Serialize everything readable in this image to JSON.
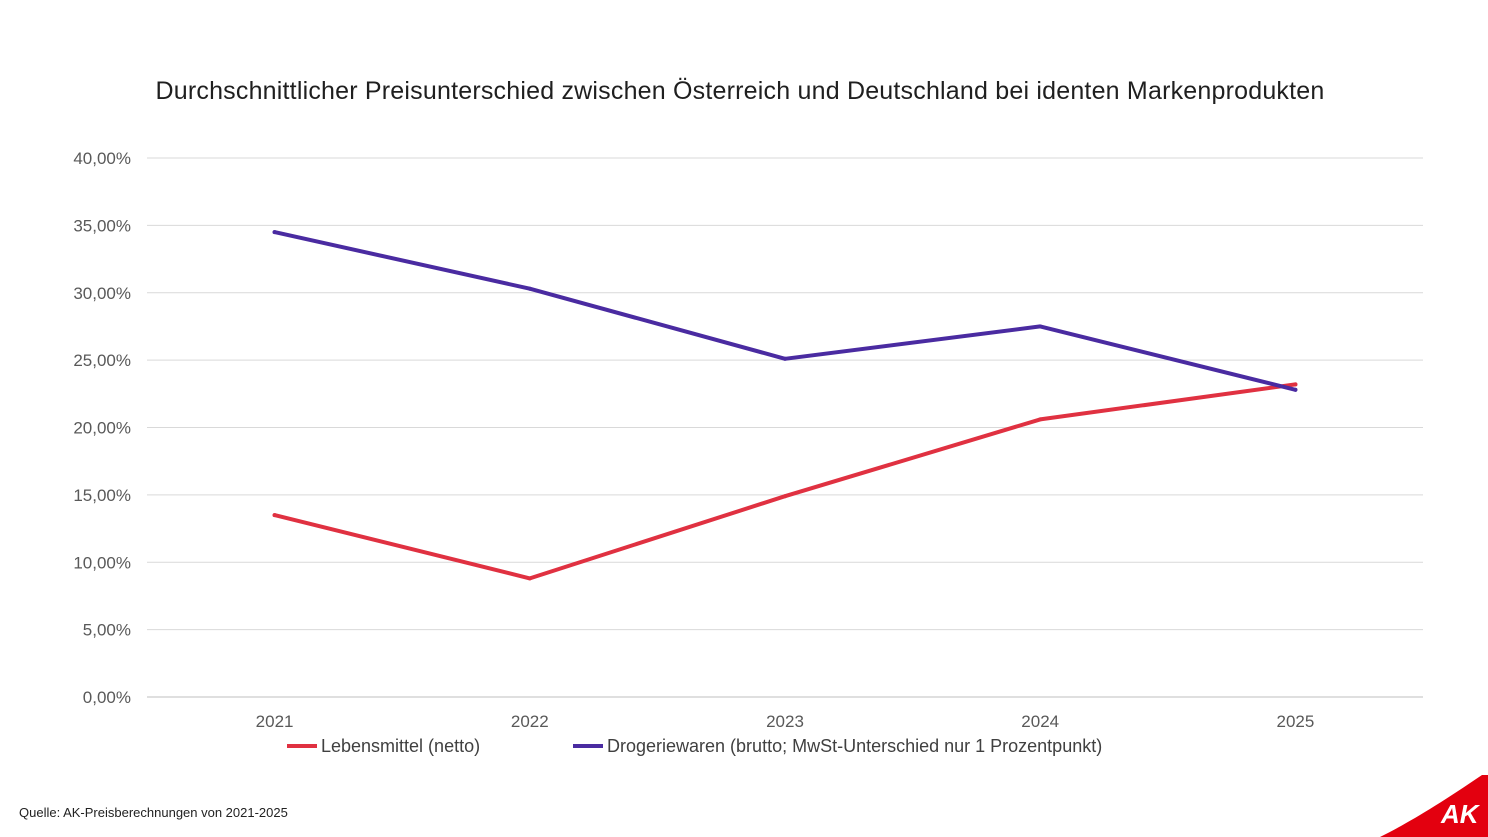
{
  "chart_data": {
    "type": "line",
    "title": "Durchschnittlicher Preisunterschied zwischen Österreich und Deutschland bei identen Markenprodukten",
    "xlabel": "",
    "ylabel": "",
    "categories": [
      "2021",
      "2022",
      "2023",
      "2024",
      "2025"
    ],
    "ylim": [
      0,
      40
    ],
    "yticks": [
      0,
      5,
      10,
      15,
      20,
      25,
      30,
      35,
      40
    ],
    "ytick_labels": [
      "0,00%",
      "5,00%",
      "10,00%",
      "15,00%",
      "20,00%",
      "25,00%",
      "30,00%",
      "35,00%",
      "40,00%"
    ],
    "grid": true,
    "legend_position": "bottom",
    "series": [
      {
        "name": "Lebensmittel (netto)",
        "color": "#e03141",
        "values": [
          13.5,
          8.8,
          14.9,
          20.6,
          23.2
        ]
      },
      {
        "name": "Drogeriewaren (brutto; MwSt-Unterschied nur 1 Prozentpunkt)",
        "color": "#4a2ba1",
        "values": [
          34.5,
          30.3,
          25.1,
          27.5,
          22.8
        ]
      }
    ]
  },
  "footer": {
    "source": "Quelle: AK-Preisberechnungen von 2021-2025"
  },
  "logo": {
    "text": "AK",
    "color": "#e3000f"
  }
}
